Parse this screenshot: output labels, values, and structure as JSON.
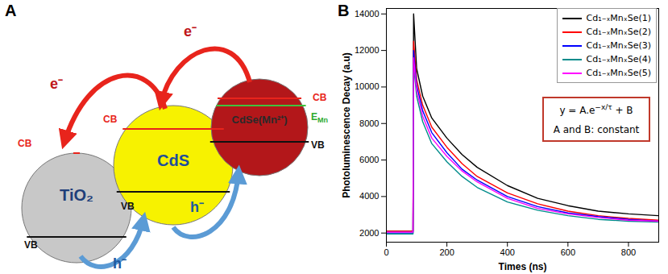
{
  "diagram": {
    "panel_label": "A",
    "particles": [
      {
        "label": "TiO₂",
        "color": "#c8c8c8",
        "cb": "CB",
        "vb": "VB"
      },
      {
        "label": "CdS",
        "color": "#f7f200",
        "cb": "CB",
        "vb": "VB"
      },
      {
        "label": "CdSe(Mn²⁺)",
        "color": "#b3171a",
        "cb": "CB",
        "vb": "VB",
        "level": {
          "text": "E",
          "sub": "Mn"
        }
      }
    ],
    "arrows": [
      {
        "label": "e⁻",
        "color": "#e8241c"
      },
      {
        "label": "e⁻",
        "color": "#e8241c"
      },
      {
        "label": "h⁻",
        "color": "#5b9bd5"
      },
      {
        "label": "h⁻",
        "color": "#5b9bd5"
      }
    ]
  },
  "chart_data": {
    "panel_label": "B",
    "type": "line",
    "x_label": "Times (ns)",
    "y_label": "Photoluminescence Decay (a.u)",
    "x": [
      0,
      50,
      88,
      90,
      100,
      120,
      150,
      200,
      250,
      300,
      400,
      500,
      600,
      700,
      800,
      900
    ],
    "series": [
      {
        "name": "Cd₁₋ₓMnₓSe(1)",
        "color": "#000000",
        "values": [
          2100,
          2100,
          2100,
          14000,
          11000,
          9500,
          8300,
          7200,
          6300,
          5600,
          4600,
          3900,
          3500,
          3200,
          3050,
          2950
        ]
      },
      {
        "name": "Cd₁₋ₓMnₓSe(2)",
        "color": "#ff0000",
        "values": [
          2100,
          2100,
          2100,
          12500,
          10400,
          9000,
          7800,
          6700,
          5800,
          5100,
          4200,
          3600,
          3200,
          2950,
          2800,
          2700
        ]
      },
      {
        "name": "Cd₁₋ₓMnₓSe(3)",
        "color": "#0000ff",
        "values": [
          2000,
          2000,
          2000,
          12000,
          10100,
          8700,
          7500,
          6400,
          5500,
          4900,
          4000,
          3450,
          3100,
          2900,
          2750,
          2650
        ]
      },
      {
        "name": "Cd₁₋ₓMnₓSe(4)",
        "color": "#008b8b",
        "values": [
          1950,
          1950,
          1950,
          11200,
          9500,
          8100,
          6900,
          5900,
          5100,
          4500,
          3700,
          3250,
          2950,
          2750,
          2650,
          2600
        ]
      },
      {
        "name": "Cd₁₋ₓMnₓSe(5)",
        "color": "#ff00ff",
        "values": [
          2050,
          2050,
          2050,
          11600,
          9800,
          8400,
          7200,
          6200,
          5400,
          4800,
          3900,
          3350,
          3050,
          2850,
          2700,
          2650
        ]
      }
    ],
    "xlim": [
      0,
      900
    ],
    "xticks": [
      0,
      200,
      400,
      600,
      800
    ],
    "ylim": [
      1500,
      14300
    ],
    "yticks": [
      2000,
      4000,
      6000,
      8000,
      10000,
      12000,
      14000
    ],
    "legend": "top-right",
    "annotation": {
      "base": "y = A.e",
      "exponent": "−x/τ",
      "rest": " + B",
      "note": "A and B:  constant"
    }
  }
}
